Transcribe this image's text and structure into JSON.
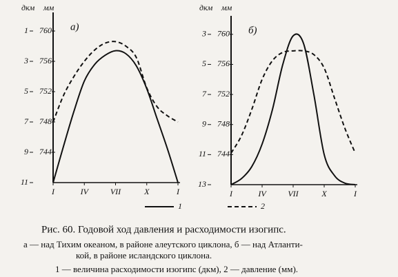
{
  "chart_data": [
    {
      "type": "line",
      "title": "а)",
      "ylabel": "дкм",
      "y2label": "мм",
      "x": [
        1,
        2,
        3,
        4,
        5,
        6,
        7,
        8,
        9,
        10,
        11,
        12,
        13
      ],
      "xlim": [
        1,
        13
      ],
      "xticks": [
        {
          "value": 1,
          "label": "I"
        },
        {
          "value": 4,
          "label": "IV"
        },
        {
          "value": 7,
          "label": "VII"
        },
        {
          "value": 10,
          "label": "X"
        },
        {
          "value": 13,
          "label": "I"
        }
      ],
      "ylim": [
        11,
        0
      ],
      "yticks": [
        1,
        3,
        5,
        7,
        9,
        11
      ],
      "y2lim": [
        740,
        762
      ],
      "y2ticks": [
        760,
        756,
        752,
        748,
        744
      ],
      "series": [
        {
          "color": "#111111",
          "dash": false,
          "values": [
            11,
            8.6,
            6.3,
            4.3,
            3.2,
            2.6,
            2.3,
            2.5,
            3.3,
            4.8,
            6.8,
            8.8,
            11
          ]
        },
        {
          "color": "#111111",
          "dash": true,
          "axis": "y2",
          "values": [
            748,
            751.5,
            754,
            756,
            757.5,
            758.4,
            758.6,
            758,
            756.5,
            752.5,
            750,
            748.8,
            748
          ]
        }
      ]
    },
    {
      "type": "line",
      "title": "б)",
      "ylabel": "дкм",
      "y2label": "мм",
      "x": [
        1,
        2,
        3,
        4,
        5,
        6,
        7,
        8,
        9,
        10,
        11,
        12,
        13
      ],
      "xlim": [
        1,
        13
      ],
      "xticks": [
        {
          "value": 1,
          "label": "I"
        },
        {
          "value": 4,
          "label": "IV"
        },
        {
          "value": 7,
          "label": "VII"
        },
        {
          "value": 10,
          "label": "X"
        },
        {
          "value": 13,
          "label": "I"
        }
      ],
      "ylim": [
        13,
        2
      ],
      "yticks": [
        3,
        5,
        7,
        9,
        11,
        13
      ],
      "y2lim": [
        740,
        762
      ],
      "y2ticks": [
        760,
        756,
        752,
        748,
        744
      ],
      "series": [
        {
          "color": "#111111",
          "dash": false,
          "values": [
            13,
            12.6,
            11.8,
            10.3,
            8,
            5,
            3.1,
            3.6,
            7,
            11,
            12.4,
            12.9,
            13
          ]
        },
        {
          "color": "#111111",
          "dash": true,
          "axis": "y2",
          "values": [
            744.2,
            746.5,
            750,
            754,
            756.5,
            757.6,
            757.8,
            757.8,
            757.3,
            755.5,
            751.5,
            747.5,
            744.2
          ]
        }
      ]
    }
  ],
  "legend": [
    {
      "label": "1",
      "dash": false
    },
    {
      "label": "2",
      "dash": true
    }
  ],
  "caption": [
    "Рис. 60. Годовой ход давления и расходимости изогипс.",
    "а — над Тихим океаном, в районе алеутского циклона, б — над Атланти-",
    "кой, в районе исландского циклона.",
    "1 — величина расходимости изогипс (дкм), 2 — давление (мм)."
  ]
}
